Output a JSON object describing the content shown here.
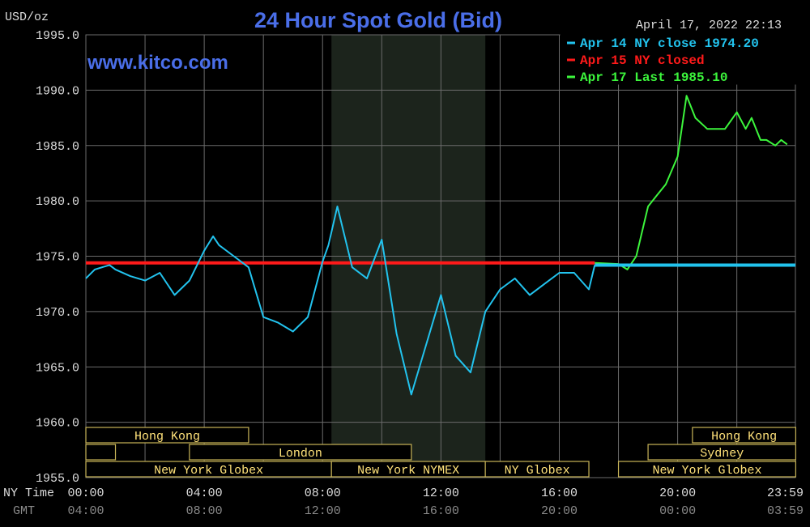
{
  "header": {
    "title": "24 Hour Spot Gold (Bid)",
    "unit": "USD/oz",
    "timestamp": "April 17, 2022 22:13",
    "watermark": "www.kitco.com"
  },
  "legend": {
    "placement": "top-right",
    "items": [
      {
        "text": "Apr 14 NY close 1974.20",
        "color": "#22c3ee"
      },
      {
        "text": "Apr 15 NY closed",
        "color": "#ff1a1a"
      },
      {
        "text": "Apr 17 Last 1985.10",
        "color": "#3cf53c"
      }
    ]
  },
  "axes": {
    "row_label_ny": "NY Time",
    "row_label_gmt": "GMT",
    "ny_ticks": [
      "00:00",
      "04:00",
      "08:00",
      "12:00",
      "16:00",
      "20:00",
      "23:59"
    ],
    "gmt_ticks": [
      "04:00",
      "08:00",
      "12:00",
      "16:00",
      "20:00",
      "00:00",
      "03:59"
    ],
    "y_ticks": [
      "1995.0",
      "1990.0",
      "1985.0",
      "1980.0",
      "1975.0",
      "1970.0",
      "1965.0",
      "1960.0",
      "1955.0"
    ]
  },
  "sessions": [
    {
      "label": "Hong Kong",
      "start": 0.0,
      "end": 5.5,
      "row": 0
    },
    {
      "label": "",
      "start": 0.0,
      "end": 1.0,
      "row": 1
    },
    {
      "label": "London",
      "start": 3.5,
      "end": 11.0,
      "row": 1
    },
    {
      "label": "New York Globex",
      "start": 0.0,
      "end": 8.3,
      "row": 2
    },
    {
      "label": "New York NYMEX",
      "start": 8.3,
      "end": 13.5,
      "row": 2
    },
    {
      "label": "NY Globex",
      "start": 13.5,
      "end": 17.0,
      "row": 2
    },
    {
      "label": "Hong Kong",
      "start": 20.5,
      "end": 23.99,
      "row": 0
    },
    {
      "label": "Sydney",
      "start": 19.0,
      "end": 23.99,
      "row": 1
    },
    {
      "label": "New York Globex",
      "start": 18.0,
      "end": 23.99,
      "row": 2
    }
  ],
  "colors": {
    "background": "#000000",
    "grid": "#6b6b6b",
    "shade": "#1c241c",
    "title": "#4a6ee8",
    "text": "#dddddd",
    "axis_time_ny": "#dddddd",
    "axis_time_gmt": "#8a8a8a",
    "session_border": "#c8b458",
    "session_text": "#ffe27a"
  },
  "chart_data": {
    "type": "line",
    "xlabel": "",
    "ylabel": "USD/oz",
    "xlim": [
      0,
      23.98
    ],
    "ylim": [
      1955,
      1995
    ],
    "grid": true,
    "shaded_range": [
      8.3,
      13.5
    ],
    "series": [
      {
        "name": "Apr 15 NY closed",
        "color": "#ff1a1a",
        "x": [
          0.0,
          17.2
        ],
        "y": [
          1974.4,
          1974.4
        ]
      },
      {
        "name": "Apr 14 NY close 1974.20",
        "color": "#22c3ee",
        "x": [
          0.0,
          0.3,
          0.8,
          1.0,
          1.5,
          2.0,
          2.5,
          3.0,
          3.5,
          4.0,
          4.3,
          4.5,
          5.0,
          5.5,
          6.0,
          6.5,
          7.0,
          7.5,
          8.0,
          8.2,
          8.5,
          9.0,
          9.5,
          10.0,
          10.5,
          11.0,
          11.5,
          12.0,
          12.5,
          13.0,
          13.5,
          14.0,
          14.5,
          15.0,
          15.5,
          16.0,
          16.5,
          17.0,
          17.2,
          17.2,
          23.98
        ],
        "y": [
          1973.0,
          1973.8,
          1974.2,
          1973.8,
          1973.2,
          1972.8,
          1973.5,
          1971.5,
          1972.8,
          1975.5,
          1976.8,
          1976.0,
          1975.0,
          1974.0,
          1969.5,
          1969.0,
          1968.2,
          1969.5,
          1974.5,
          1976.0,
          1979.5,
          1974.0,
          1973.0,
          1976.5,
          1968.0,
          1962.5,
          1967.0,
          1971.5,
          1966.0,
          1964.5,
          1970.0,
          1972.0,
          1973.0,
          1971.5,
          1972.5,
          1973.5,
          1973.5,
          1972.0,
          1974.2,
          null,
          null
        ],
        "reference_value": 1974.2
      },
      {
        "name": "Apr 17 Last 1985.10",
        "color": "#3cf53c",
        "x": [
          17.2,
          18.0,
          18.3,
          18.6,
          19.0,
          19.3,
          19.6,
          20.0,
          20.3,
          20.6,
          21.0,
          21.3,
          21.6,
          22.0,
          22.3,
          22.5,
          22.8,
          23.0,
          23.3,
          23.5,
          23.7
        ],
        "y": [
          1974.4,
          1974.3,
          1973.8,
          1975.0,
          1979.5,
          1980.5,
          1981.5,
          1984.0,
          1989.5,
          1987.5,
          1986.5,
          1986.5,
          1986.5,
          1988.0,
          1986.5,
          1987.5,
          1985.5,
          1985.5,
          1985.0,
          1985.5,
          1985.1
        ]
      }
    ],
    "reference_lines": [
      {
        "name": "Apr 14 NY close",
        "value": 1974.2,
        "color": "#22c3ee",
        "x_start": 17.2,
        "x_end": 23.98
      }
    ]
  }
}
